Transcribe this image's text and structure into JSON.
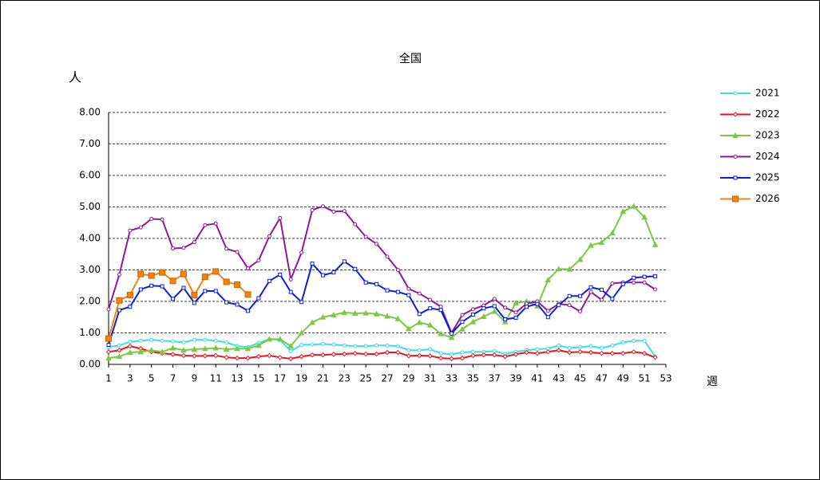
{
  "chart_data": {
    "type": "line",
    "title": "全国",
    "y_label": "人",
    "x_label": "週",
    "x": [
      1,
      2,
      3,
      4,
      5,
      6,
      7,
      8,
      9,
      10,
      11,
      12,
      13,
      14,
      15,
      16,
      17,
      18,
      19,
      20,
      21,
      22,
      23,
      24,
      25,
      26,
      27,
      28,
      29,
      30,
      31,
      32,
      33,
      34,
      35,
      36,
      37,
      38,
      39,
      40,
      41,
      42,
      43,
      44,
      45,
      46,
      47,
      48,
      49,
      50,
      51,
      52
    ],
    "xlim": [
      1,
      53
    ],
    "xticks": [
      1,
      3,
      5,
      7,
      9,
      11,
      13,
      15,
      17,
      19,
      21,
      23,
      25,
      27,
      29,
      31,
      33,
      35,
      37,
      39,
      41,
      43,
      45,
      47,
      49,
      51,
      53
    ],
    "ylim": [
      0,
      8
    ],
    "yticks": [
      {
        "value": 0,
        "label": "0.00"
      },
      {
        "value": 1,
        "label": "1.00"
      },
      {
        "value": 2,
        "label": "2.00"
      },
      {
        "value": 3,
        "label": "3.00"
      },
      {
        "value": 4,
        "label": "4.00"
      },
      {
        "value": 5,
        "label": "5.00"
      },
      {
        "value": 6,
        "label": "6.00"
      },
      {
        "value": 7,
        "label": "7.00"
      },
      {
        "value": 8,
        "label": "8.00"
      }
    ],
    "grid": true,
    "legend": "right",
    "series": [
      {
        "name": "2021",
        "color": "#33e0e8",
        "marker": "circle",
        "values": [
          0.55,
          0.6,
          0.72,
          0.75,
          0.78,
          0.75,
          0.73,
          0.7,
          0.78,
          0.78,
          0.75,
          0.7,
          0.58,
          0.55,
          0.68,
          0.8,
          0.78,
          0.42,
          0.62,
          0.63,
          0.65,
          0.63,
          0.6,
          0.58,
          0.58,
          0.6,
          0.6,
          0.58,
          0.45,
          0.45,
          0.48,
          0.35,
          0.32,
          0.38,
          0.4,
          0.4,
          0.42,
          0.33,
          0.4,
          0.45,
          0.48,
          0.5,
          0.6,
          0.52,
          0.55,
          0.58,
          0.52,
          0.6,
          0.7,
          0.75,
          0.75,
          0.25
        ]
      },
      {
        "name": "2022",
        "color": "#e8141e",
        "marker": "diamond",
        "values": [
          0.4,
          0.45,
          0.58,
          0.5,
          0.4,
          0.35,
          0.32,
          0.28,
          0.27,
          0.27,
          0.28,
          0.22,
          0.2,
          0.2,
          0.25,
          0.28,
          0.22,
          0.18,
          0.25,
          0.3,
          0.3,
          0.32,
          0.33,
          0.35,
          0.33,
          0.33,
          0.38,
          0.38,
          0.27,
          0.28,
          0.27,
          0.2,
          0.18,
          0.2,
          0.28,
          0.3,
          0.3,
          0.25,
          0.32,
          0.38,
          0.35,
          0.4,
          0.45,
          0.38,
          0.4,
          0.38,
          0.35,
          0.35,
          0.35,
          0.4,
          0.35,
          0.22
        ]
      },
      {
        "name": "2023",
        "color": "#7cc840",
        "marker": "triangle",
        "values": [
          0.2,
          0.25,
          0.38,
          0.4,
          0.45,
          0.4,
          0.52,
          0.45,
          0.48,
          0.5,
          0.52,
          0.48,
          0.5,
          0.5,
          0.6,
          0.8,
          0.8,
          0.58,
          1.0,
          1.33,
          1.5,
          1.57,
          1.65,
          1.62,
          1.63,
          1.6,
          1.53,
          1.45,
          1.13,
          1.33,
          1.25,
          0.97,
          0.85,
          1.12,
          1.35,
          1.52,
          1.68,
          1.35,
          1.95,
          2.0,
          1.85,
          2.68,
          3.03,
          3.02,
          3.33,
          3.78,
          3.87,
          4.17,
          4.85,
          5.02,
          4.67,
          3.8
        ]
      },
      {
        "name": "2024",
        "color": "#8c1a96",
        "marker": "circle",
        "values": [
          1.75,
          2.85,
          4.25,
          4.35,
          4.62,
          4.6,
          3.68,
          3.7,
          3.88,
          4.42,
          4.47,
          3.67,
          3.57,
          3.05,
          3.3,
          4.07,
          4.65,
          2.7,
          3.55,
          4.9,
          5.02,
          4.85,
          4.87,
          4.45,
          4.05,
          3.83,
          3.42,
          3.0,
          2.4,
          2.25,
          2.05,
          1.83,
          1.0,
          1.57,
          1.75,
          1.87,
          2.08,
          1.8,
          1.65,
          1.93,
          2.0,
          1.7,
          1.92,
          1.88,
          1.68,
          2.3,
          2.05,
          2.57,
          2.6,
          2.6,
          2.6,
          2.38
        ]
      },
      {
        "name": "2025",
        "color": "#0a1ee0",
        "marker": "square",
        "values": [
          0.62,
          1.72,
          1.83,
          2.38,
          2.5,
          2.48,
          2.08,
          2.43,
          1.95,
          2.33,
          2.33,
          1.97,
          1.9,
          1.7,
          2.1,
          2.65,
          2.85,
          2.3,
          1.98,
          3.2,
          2.83,
          2.92,
          3.27,
          3.03,
          2.6,
          2.55,
          2.35,
          2.3,
          2.2,
          1.6,
          1.78,
          1.73,
          0.98,
          1.35,
          1.58,
          1.78,
          1.85,
          1.43,
          1.48,
          1.83,
          1.92,
          1.5,
          1.88,
          2.17,
          2.17,
          2.45,
          2.37,
          2.08,
          2.55,
          2.75,
          2.78,
          2.8
        ]
      },
      {
        "name": "2026",
        "color": "#f5820f",
        "marker": "bigsquare",
        "values": [
          0.82,
          2.03,
          2.2,
          2.87,
          2.82,
          2.92,
          2.65,
          2.87,
          2.2,
          2.78,
          2.95,
          2.62,
          2.53,
          2.22,
          null,
          null,
          null,
          null,
          null,
          null,
          null,
          null,
          null,
          null,
          null,
          null,
          null,
          null,
          null,
          null,
          null,
          null,
          null,
          null,
          null,
          null,
          null,
          null,
          null,
          null,
          null,
          null,
          null,
          null,
          null,
          null,
          null,
          null,
          null,
          null,
          null,
          null
        ]
      }
    ]
  }
}
